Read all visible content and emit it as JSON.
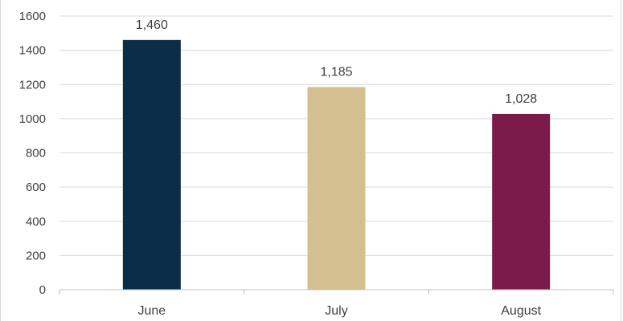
{
  "chart_data": {
    "type": "bar",
    "categories": [
      "June",
      "July",
      "August"
    ],
    "values": [
      1460,
      1185,
      1028
    ],
    "data_labels": [
      "1,460",
      "1,185",
      "1,028"
    ],
    "colors": [
      "#0c2d48",
      "#d3bf8f",
      "#7a1b4c"
    ],
    "title": "",
    "xlabel": "",
    "ylabel": "",
    "ylim": [
      0,
      1600
    ],
    "yticks": [
      0,
      200,
      400,
      600,
      800,
      1000,
      1200,
      1400,
      1600
    ],
    "grid": true,
    "legend": "none"
  }
}
